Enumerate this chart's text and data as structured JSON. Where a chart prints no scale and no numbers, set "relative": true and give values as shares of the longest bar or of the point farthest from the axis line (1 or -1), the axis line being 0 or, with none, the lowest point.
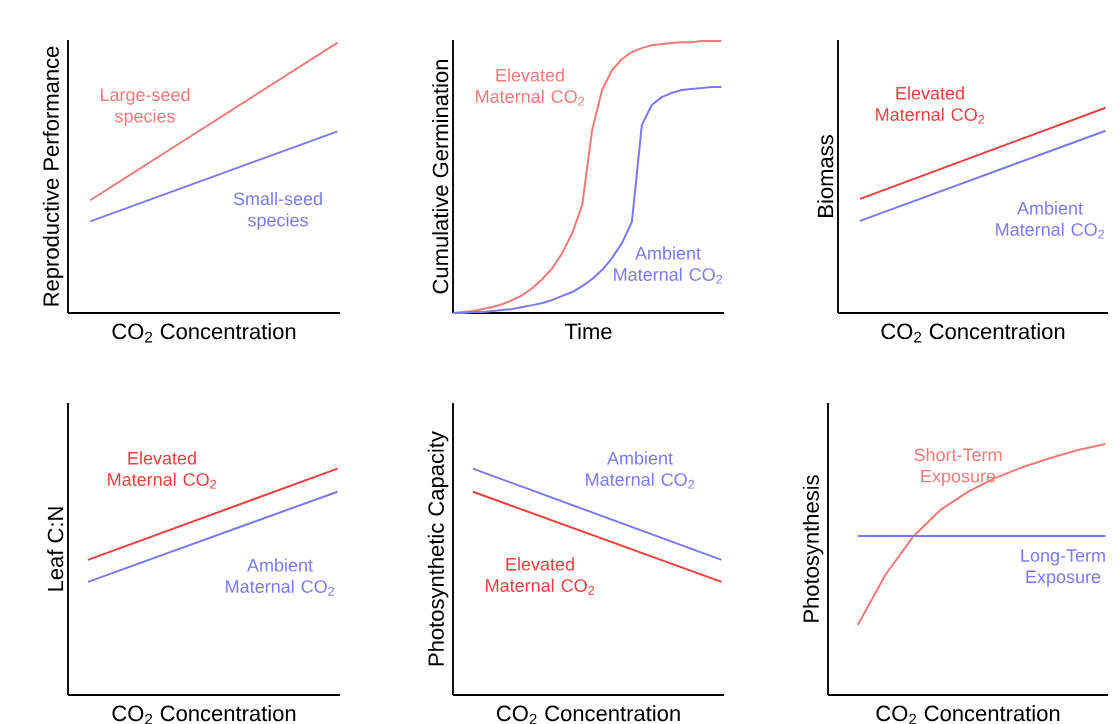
{
  "chart_data": [
    {
      "type": "line",
      "relative": true,
      "xlabel": "CO$_{2}$ Concentration",
      "ylabel": "Reproductive Performance",
      "categories": [
        null,
        null
      ],
      "series": [
        {
          "name": "Large-seed species",
          "color": "#f07a7a",
          "values": [
            0.417,
            1
          ]
        },
        {
          "name": "Small-seed species",
          "color": "#7a7af0",
          "values": [
            0.339,
            0.672
          ]
        }
      ]
    },
    {
      "type": "line",
      "relative": true,
      "xlabel": "Time",
      "ylabel": "Cumulative Germination",
      "categories": [
        null,
        null,
        null,
        null,
        null,
        null,
        null,
        null,
        null,
        null,
        null,
        null,
        null,
        null,
        null,
        null,
        null,
        null,
        null,
        null,
        null,
        null,
        null,
        null,
        null,
        null,
        null,
        null
      ],
      "series": [
        {
          "name": "Elevated Maternal CO$_{2}$",
          "color": "#f07a7a",
          "values": [
            0,
            0.004,
            0.007,
            0.015,
            0.022,
            0.033,
            0.048,
            0.066,
            0.092,
            0.125,
            0.165,
            0.221,
            0.294,
            0.397,
            0.673,
            0.82,
            0.893,
            0.934,
            0.96,
            0.974,
            0.985,
            0.989,
            0.993,
            0.996,
            0.996,
            1,
            1,
            1
          ]
        },
        {
          "name": "Ambient Maternal CO$_{2}$",
          "color": "#7a7af0",
          "values": [
            0,
            0,
            0.004,
            0.004,
            0.007,
            0.011,
            0.015,
            0.022,
            0.029,
            0.037,
            0.048,
            0.063,
            0.077,
            0.099,
            0.125,
            0.158,
            0.202,
            0.257,
            0.335,
            0.691,
            0.765,
            0.794,
            0.809,
            0.82,
            0.824,
            0.827,
            0.831,
            0.831
          ]
        }
      ]
    },
    {
      "type": "line",
      "relative": true,
      "xlabel": "CO$_{2}$ Concentration",
      "ylabel": "Biomass",
      "categories": [
        null,
        null
      ],
      "series": [
        {
          "name": "Elevated Maternal CO$_{2}$",
          "color": "#e8403f",
          "values": [
            0.556,
            1
          ]
        },
        {
          "name": "Ambient Maternal CO$_{2}$",
          "color": "#7a7af0",
          "values": [
            0.449,
            0.888
          ]
        }
      ]
    },
    {
      "type": "line",
      "relative": true,
      "xlabel": "CO$_{2}$ Concentration",
      "ylabel": "Leaf C:N",
      "categories": [
        null,
        null
      ],
      "series": [
        {
          "name": "Elevated Maternal CO$_{2}$",
          "color": "#e8403f",
          "values": [
            0.597,
            1
          ]
        },
        {
          "name": "Ambient Maternal CO$_{2}$",
          "color": "#7a7af0",
          "values": [
            0.5,
            0.898
          ]
        }
      ]
    },
    {
      "type": "line",
      "relative": true,
      "xlabel": "CO$_{2}$ Concentration",
      "ylabel": "Photosynthetic Capacity",
      "categories": [
        null,
        null
      ],
      "series": [
        {
          "name": "Ambient Maternal CO$_{2}$",
          "color": "#7a7af0",
          "values": [
            1,
            0.597
          ]
        },
        {
          "name": "Elevated Maternal CO$_{2}$",
          "color": "#e8403f",
          "values": [
            0.898,
            0.5
          ]
        }
      ]
    },
    {
      "type": "line",
      "relative": true,
      "xlabel": "CO$_{2}$ Concentration",
      "ylabel": "Photosynthesis",
      "categories": [
        null,
        null,
        null,
        null,
        null,
        null,
        null,
        null,
        null,
        null
      ],
      "series": [
        {
          "name": "Short-Term Exposure",
          "color": "#f07a7a",
          "values": [
            0.279,
            0.478,
            0.629,
            0.737,
            0.809,
            0.865,
            0.908,
            0.944,
            0.976,
            1
          ]
        },
        {
          "name": "Long-Term Exposure",
          "color": "#7a7af0",
          "values": [
            0.633,
            0.633,
            0.633,
            0.633,
            0.633,
            0.633,
            0.633,
            0.633,
            0.633,
            0.633
          ]
        }
      ]
    }
  ]
}
